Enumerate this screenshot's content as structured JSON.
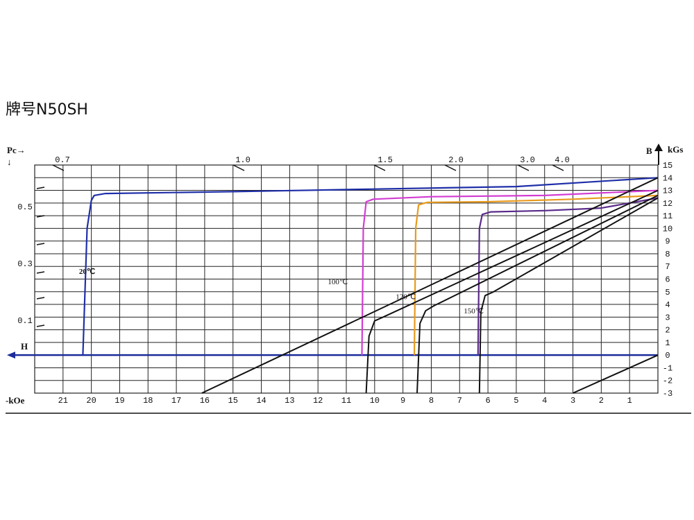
{
  "page": {
    "title": "牌号N50SH"
  },
  "chart_data": {
    "type": "line",
    "title": "牌号N50SH",
    "x_axis": {
      "label": "-kOe",
      "range": [
        0,
        22
      ],
      "ticks": [
        21,
        20,
        19,
        18,
        17,
        16,
        15,
        14,
        13,
        12,
        11,
        10,
        9,
        8,
        7,
        6,
        5,
        4,
        3,
        2,
        1
      ],
      "direction": "H increases to the left"
    },
    "y_axis": {
      "label": "kGs",
      "range": [
        -3,
        15
      ],
      "ticks": [
        15,
        14,
        13,
        12,
        11,
        10,
        9,
        8,
        7,
        6,
        5,
        4,
        3,
        2,
        1,
        0,
        -1,
        -2,
        -3
      ]
    },
    "y_left_axis": {
      "label": "Pc→",
      "arrow": "↓",
      "ticks": [
        "0.5",
        "0.3",
        "0.1"
      ]
    },
    "pc_top_ticks": [
      "0.7",
      "1.0",
      "1.5",
      "2.0",
      "3.0",
      "4.0"
    ],
    "h_label": "H",
    "b_label": "B",
    "grid": true,
    "colors": {
      "grid": "#222222",
      "h_axis": "#1a2a9a",
      "b_curve": "#111111"
    },
    "series": [
      {
        "name": "20℃",
        "color": "#1f2fa8",
        "points": [
          [
            20.3,
            0
          ],
          [
            20.15,
            10
          ],
          [
            20.0,
            12.2
          ],
          [
            19.9,
            12.6
          ],
          [
            19.5,
            12.75
          ],
          [
            15,
            12.9
          ],
          [
            10,
            13.1
          ],
          [
            5,
            13.3
          ],
          [
            0,
            14.0
          ]
        ]
      },
      {
        "name": "100℃",
        "color": "#d23cd2",
        "points": [
          [
            10.45,
            0
          ],
          [
            10.4,
            10
          ],
          [
            10.3,
            12.1
          ],
          [
            10.05,
            12.3
          ],
          [
            8,
            12.5
          ],
          [
            4,
            12.6
          ],
          [
            0,
            13.0
          ]
        ]
      },
      {
        "name": "120℃",
        "color": "#e89a1c",
        "points": [
          [
            8.6,
            0
          ],
          [
            8.55,
            10
          ],
          [
            8.45,
            11.85
          ],
          [
            8.15,
            12.05
          ],
          [
            6,
            12.1
          ],
          [
            3,
            12.3
          ],
          [
            0,
            12.6
          ]
        ]
      },
      {
        "name": "150℃",
        "color": "#5a2a8a",
        "points": [
          [
            6.35,
            0
          ],
          [
            6.3,
            10
          ],
          [
            6.2,
            11.1
          ],
          [
            5.9,
            11.3
          ],
          [
            4,
            11.4
          ],
          [
            2,
            11.6
          ],
          [
            0,
            12.4
          ]
        ]
      },
      {
        "name": "",
        "color": "#111111",
        "points": [
          [
            16.1,
            -3
          ],
          [
            0,
            14.0
          ]
        ]
      },
      {
        "name": "",
        "color": "#111111",
        "points": [
          [
            10.3,
            -3
          ],
          [
            10.2,
            1.5
          ],
          [
            10.0,
            2.7
          ],
          [
            9.7,
            3.0
          ],
          [
            0,
            13.0
          ]
        ]
      },
      {
        "name": "",
        "color": "#111111",
        "points": [
          [
            8.5,
            -3
          ],
          [
            8.4,
            2.5
          ],
          [
            8.2,
            3.5
          ],
          [
            7.9,
            3.9
          ],
          [
            0,
            12.6
          ]
        ]
      },
      {
        "name": "",
        "color": "#111111",
        "points": [
          [
            6.3,
            -3
          ],
          [
            6.25,
            3.4
          ],
          [
            6.1,
            4.7
          ],
          [
            5.8,
            5.0
          ],
          [
            0,
            12.4
          ]
        ]
      },
      {
        "name": "",
        "color": "#111111",
        "points": [
          [
            3.0,
            -3
          ],
          [
            0,
            0
          ]
        ]
      }
    ],
    "annotations": [
      {
        "text": "20℃",
        "x": 20.15,
        "y": 6.4
      },
      {
        "text": "100℃",
        "x": 11.3,
        "y": 5.6
      },
      {
        "text": "120℃",
        "x": 8.9,
        "y": 4.4
      },
      {
        "text": "150℃",
        "x": 6.5,
        "y": 3.3
      }
    ]
  }
}
